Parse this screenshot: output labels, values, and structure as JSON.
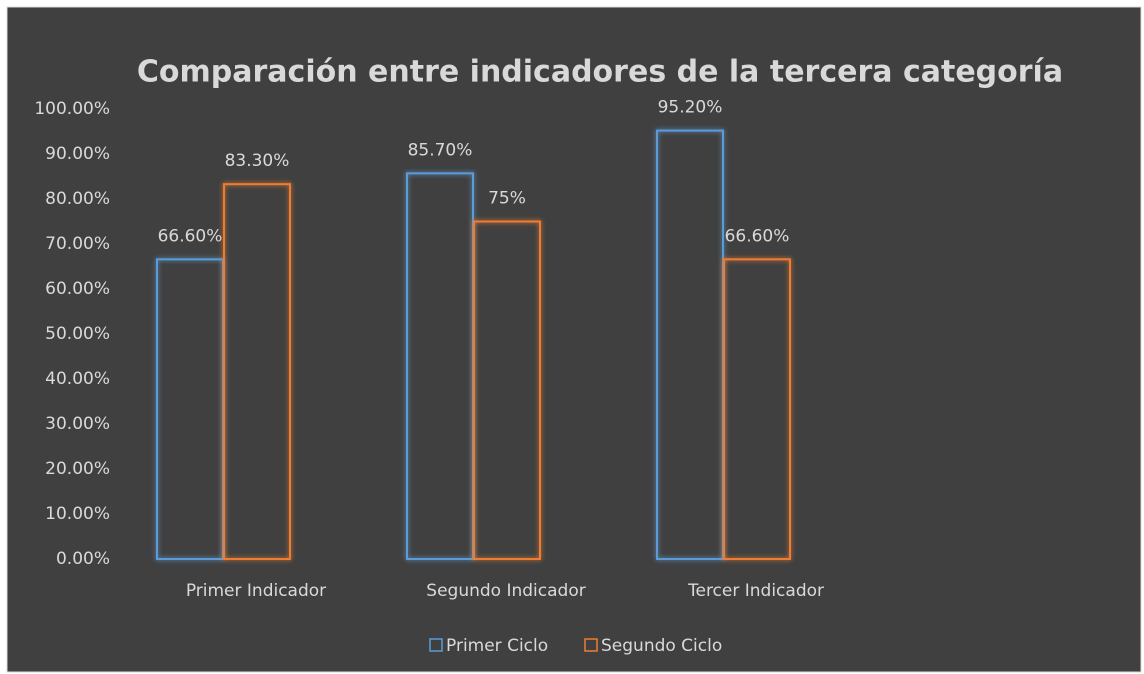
{
  "chart_data": {
    "type": "bar",
    "title": "Comparación entre indicadores de la tercera categoría",
    "categories": [
      "Primer Indicador",
      "Segundo Indicador",
      "Tercer Indicador"
    ],
    "series": [
      {
        "name": "Primer Ciclo",
        "color": "#5b9bd5",
        "values": [
          66.6,
          85.7,
          95.2
        ],
        "value_labels": [
          "66.60%",
          "85.70%",
          "95.20%"
        ]
      },
      {
        "name": "Segundo Ciclo",
        "color": "#ed7d31",
        "values": [
          83.3,
          75,
          66.6
        ],
        "value_labels": [
          "83.30%",
          "75%",
          "66.60%"
        ]
      }
    ],
    "ylim": [
      0,
      100
    ],
    "yticks": [
      {
        "value": 0,
        "label": "0.00%"
      },
      {
        "value": 10,
        "label": "10.00%"
      },
      {
        "value": 20,
        "label": "20.00%"
      },
      {
        "value": 30,
        "label": "30.00%"
      },
      {
        "value": 40,
        "label": "40.00%"
      },
      {
        "value": 50,
        "label": "50.00%"
      },
      {
        "value": 60,
        "label": "60.00%"
      },
      {
        "value": 70,
        "label": "70.00%"
      },
      {
        "value": 80,
        "label": "80.00%"
      },
      {
        "value": 90,
        "label": "90.00%"
      },
      {
        "value": 100,
        "label": "100.00%"
      }
    ],
    "legend": "bottom"
  }
}
